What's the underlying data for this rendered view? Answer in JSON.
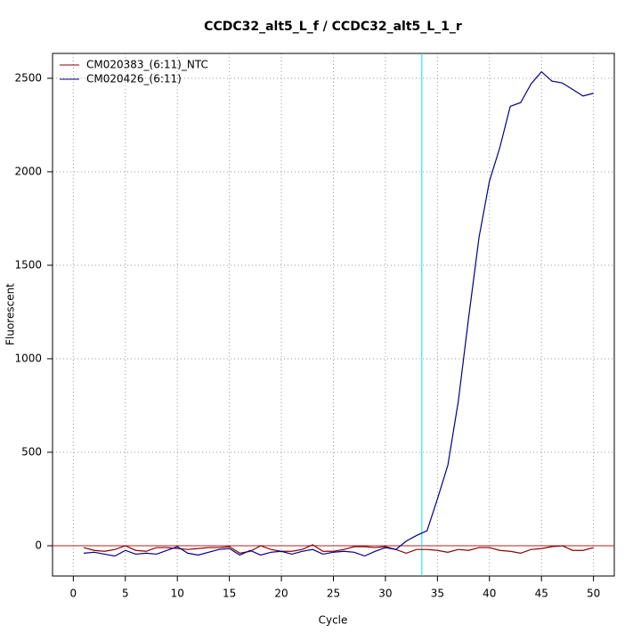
{
  "chart_data": {
    "type": "line",
    "title": "CCDC32_alt5_L_f / CCDC32_alt5_L_1_r",
    "x_label": "Cycle",
    "y_label": "Fluorescent",
    "x": [
      1,
      2,
      3,
      4,
      5,
      6,
      7,
      8,
      9,
      10,
      11,
      12,
      13,
      14,
      15,
      16,
      17,
      18,
      19,
      20,
      21,
      22,
      23,
      24,
      25,
      26,
      27,
      28,
      29,
      30,
      31,
      32,
      33,
      34,
      35,
      36,
      37,
      38,
      39,
      40,
      41,
      42,
      43,
      44,
      45,
      46,
      47,
      48,
      49,
      50
    ],
    "series": [
      {
        "name": "CM020383_(6:11)_NTC",
        "color": "#8b0000",
        "values": [
          -10,
          -25,
          -30,
          -20,
          0,
          -25,
          -30,
          -10,
          -10,
          -15,
          -20,
          -15,
          -10,
          -10,
          -5,
          -40,
          -30,
          0,
          -20,
          -30,
          -30,
          -20,
          5,
          -30,
          -30,
          -20,
          -5,
          -5,
          -10,
          -5,
          -20,
          -40,
          -20,
          -20,
          -25,
          -35,
          -20,
          -25,
          -10,
          -10,
          -25,
          -30,
          -40,
          -20,
          -15,
          -5,
          0,
          -25,
          -25,
          -10
        ]
      },
      {
        "name": "CM020426_(6:11)",
        "color": "#00008b",
        "values": [
          -40,
          -35,
          -45,
          -55,
          -25,
          -45,
          -40,
          -45,
          -25,
          -5,
          -40,
          -50,
          -35,
          -20,
          -15,
          -50,
          -25,
          -50,
          -35,
          -30,
          -45,
          -30,
          -20,
          -45,
          -35,
          -30,
          -35,
          -55,
          -30,
          -10,
          -20,
          25,
          55,
          80,
          250,
          430,
          770,
          1220,
          1650,
          1950,
          2130,
          2350,
          2370,
          2470,
          2535,
          2485,
          2475,
          2440,
          2405,
          2420
        ]
      }
    ],
    "xlim": [
      -2,
      52
    ],
    "ylim": [
      -162,
      2633
    ],
    "xticks": [
      0,
      5,
      10,
      15,
      20,
      25,
      30,
      35,
      40,
      45,
      50
    ],
    "yticks": [
      0,
      500,
      1000,
      1500,
      2000,
      2500
    ],
    "grid": true,
    "legend": "top-left",
    "threshold": {
      "value": 0,
      "color": "#b22222"
    },
    "cycle_marker": {
      "value": 33.5,
      "color": "#00e5ee"
    }
  }
}
